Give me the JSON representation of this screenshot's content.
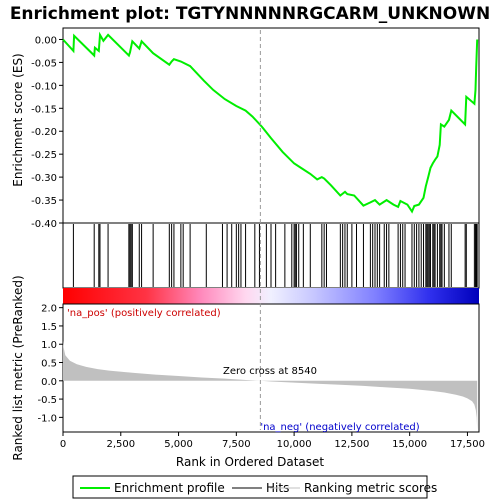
{
  "chart_data": {
    "type": "line",
    "title": "Enrichment plot: TGTYNNNNNRGCARM_UNKNOWN",
    "top_panel": {
      "ylabel": "Enrichment score (ES)",
      "ylim": [
        -0.4,
        0.025
      ],
      "yticks": [
        0.0,
        -0.05,
        -0.1,
        -0.15,
        -0.2,
        -0.25,
        -0.3,
        -0.35,
        -0.4
      ],
      "ytick_labels": [
        "0.00",
        "-0.05",
        "-0.10",
        "-0.15",
        "-0.20",
        "-0.25",
        "-0.30",
        "-0.35",
        "-0.40"
      ],
      "series": [
        {
          "name": "Enrichment profile",
          "color": "#00ee00",
          "x": [
            0,
            450,
            480,
            1350,
            1380,
            1550,
            1600,
            1750,
            1950,
            2850,
            2900,
            3000,
            3300,
            3400,
            3900,
            4600,
            4700,
            4800,
            5100,
            5500,
            6100,
            6500,
            7000,
            7500,
            7900,
            8200,
            8600,
            9000,
            9500,
            10000,
            10300,
            10700,
            11000,
            11200,
            11300,
            11600,
            12000,
            12200,
            12300,
            12600,
            13000,
            13300,
            13500,
            13700,
            14000,
            14300,
            14500,
            14600,
            14900,
            15100,
            15200,
            15400,
            15600,
            15700,
            15800,
            15900,
            16000,
            16100,
            16200,
            16300,
            16350,
            16500,
            16700,
            16800,
            17100,
            17400,
            17450,
            17800,
            17850,
            17880,
            17900,
            17920
          ],
          "y": [
            0.0,
            -0.025,
            0.008,
            -0.035,
            -0.018,
            -0.025,
            0.01,
            -0.003,
            0.01,
            -0.035,
            -0.028,
            -0.004,
            -0.02,
            -0.004,
            -0.03,
            -0.055,
            -0.048,
            -0.043,
            -0.048,
            -0.058,
            -0.09,
            -0.11,
            -0.13,
            -0.145,
            -0.155,
            -0.168,
            -0.19,
            -0.215,
            -0.245,
            -0.27,
            -0.28,
            -0.293,
            -0.305,
            -0.3,
            -0.303,
            -0.318,
            -0.34,
            -0.332,
            -0.337,
            -0.34,
            -0.362,
            -0.355,
            -0.35,
            -0.36,
            -0.35,
            -0.36,
            -0.365,
            -0.352,
            -0.36,
            -0.375,
            -0.363,
            -0.36,
            -0.345,
            -0.32,
            -0.3,
            -0.28,
            -0.27,
            -0.262,
            -0.255,
            -0.23,
            -0.185,
            -0.19,
            -0.175,
            -0.155,
            -0.17,
            -0.185,
            -0.125,
            -0.14,
            -0.11,
            -0.06,
            -0.03,
            0.0
          ]
        }
      ]
    },
    "hits": {
      "name": "Hits",
      "color": "#000000",
      "x": [
        450,
        1350,
        1550,
        1600,
        1950,
        2850,
        2900,
        2950,
        3000,
        3300,
        3400,
        3900,
        4600,
        4700,
        4800,
        5100,
        5200,
        5500,
        6200,
        6900,
        7100,
        7300,
        7500,
        7600,
        7700,
        7900,
        8300,
        8500,
        8800,
        9000,
        9200,
        9600,
        9900,
        10000,
        10050,
        10100,
        10200,
        10400,
        10700,
        11200,
        11300,
        11400,
        12000,
        12100,
        12200,
        12300,
        12500,
        12700,
        13000,
        13300,
        13400,
        13500,
        13600,
        13700,
        13900,
        14000,
        14100,
        14500,
        14600,
        14700,
        14800,
        15100,
        15200,
        15300,
        15400,
        15500,
        15600,
        15700,
        15750,
        15800,
        15850,
        15900,
        16000,
        16050,
        16100,
        16200,
        16300,
        16350,
        16400,
        16500,
        16700,
        16800,
        17400,
        17450,
        17800,
        17850,
        17880,
        17900,
        17920
      ]
    },
    "rank_panel": {
      "ylabel": "Ranked list metric (PreRanked)",
      "xlabel": "Rank in Ordered Dataset",
      "xlim": [
        0,
        18000
      ],
      "xticks": [
        0,
        2500,
        5000,
        7500,
        10000,
        12500,
        15000,
        17500
      ],
      "xtick_labels": [
        "0",
        "2,500",
        "5,000",
        "7,500",
        "10,000",
        "12,500",
        "15,000",
        "17,500"
      ],
      "ylim": [
        -1.4,
        2.1
      ],
      "yticks": [
        2.0,
        1.5,
        1.0,
        0.5,
        0.0,
        -0.5,
        -1.0
      ],
      "ytick_labels": [
        "2.0",
        "1.5",
        "1.0",
        "0.5",
        "0.0",
        "-0.5",
        "-1.0"
      ],
      "metric_curve": {
        "name": "Ranking metric scores",
        "color": "#c0c0c0",
        "x": [
          0,
          30,
          100,
          300,
          600,
          1000,
          1500,
          2000,
          3000,
          4000,
          5000,
          6000,
          7000,
          8000,
          8540,
          9000,
          10000,
          11000,
          12000,
          13000,
          14000,
          15000,
          16000,
          16500,
          17000,
          17300,
          17500,
          17700,
          17800,
          17860,
          17900,
          17920
        ],
        "y": [
          1.1,
          0.9,
          0.7,
          0.55,
          0.45,
          0.38,
          0.32,
          0.28,
          0.22,
          0.17,
          0.13,
          0.09,
          0.06,
          0.02,
          0.0,
          -0.02,
          -0.05,
          -0.08,
          -0.11,
          -0.14,
          -0.18,
          -0.22,
          -0.28,
          -0.32,
          -0.38,
          -0.43,
          -0.48,
          -0.56,
          -0.65,
          -0.8,
          -1.0,
          -1.35
        ]
      },
      "zero_cross": 8540,
      "zero_cross_label": "Zero cross at 8540",
      "pos_label": "'na_pos' (positively correlated)",
      "neg_label": "'na_neg' (negatively correlated)"
    },
    "legend": {
      "placement": "bottom",
      "items": [
        {
          "label": "Enrichment profile",
          "color": "#00ee00"
        },
        {
          "label": "Hits",
          "color": "#000000"
        },
        {
          "label": "Ranking metric scores",
          "color": "#c0c0c0"
        }
      ]
    },
    "colors": {
      "profile": "#00ee00",
      "pos_label": "#cc0000",
      "neg_label": "#0000cc",
      "heatbar_pos": "#ff0000",
      "heatbar_neg": "#0000ff"
    }
  }
}
